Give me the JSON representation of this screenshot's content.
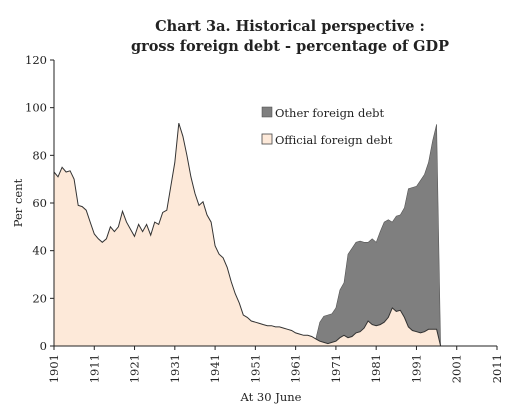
{
  "chart_data": {
    "type": "area",
    "title_line1": "Chart 3a. Historical perspective :",
    "title_line2": "gross foreign debt - percentage of GDP",
    "xlabel": "At 30 June",
    "ylabel": "Per cent",
    "xlim": [
      1901,
      2011
    ],
    "ylim": [
      0,
      120
    ],
    "x_ticks": [
      1901,
      1911,
      1921,
      1931,
      1941,
      1951,
      1961,
      1971,
      1981,
      1991,
      2001,
      2011
    ],
    "y_ticks": [
      0,
      20,
      40,
      60,
      80,
      100,
      120
    ],
    "grid": false,
    "stacked": true,
    "legend_position": "top-right",
    "series": [
      {
        "name": "Official foreign debt",
        "color": "#fde9d9",
        "points": [
          [
            1901,
            73
          ],
          [
            1902,
            71
          ],
          [
            1903,
            75
          ],
          [
            1904,
            73
          ],
          [
            1905,
            73.5
          ],
          [
            1906,
            70
          ],
          [
            1907,
            59
          ],
          [
            1908,
            58.5
          ],
          [
            1909,
            57
          ],
          [
            1910,
            52
          ],
          [
            1911,
            47
          ],
          [
            1912,
            45
          ],
          [
            1913,
            43.5
          ],
          [
            1914,
            45
          ],
          [
            1915,
            50
          ],
          [
            1916,
            48
          ],
          [
            1917,
            50
          ],
          [
            1918,
            56.5
          ],
          [
            1919,
            52
          ],
          [
            1920,
            49
          ],
          [
            1921,
            46
          ],
          [
            1922,
            51
          ],
          [
            1923,
            48
          ],
          [
            1924,
            51
          ],
          [
            1925,
            46.5
          ],
          [
            1926,
            52
          ],
          [
            1927,
            51
          ],
          [
            1928,
            56
          ],
          [
            1929,
            57
          ],
          [
            1930,
            67
          ],
          [
            1931,
            77
          ],
          [
            1932,
            93.5
          ],
          [
            1933,
            88
          ],
          [
            1934,
            80
          ],
          [
            1935,
            71
          ],
          [
            1936,
            64
          ],
          [
            1937,
            59
          ],
          [
            1938,
            60.5
          ],
          [
            1939,
            55
          ],
          [
            1940,
            52
          ],
          [
            1941,
            42
          ],
          [
            1942,
            38.5
          ],
          [
            1943,
            37
          ],
          [
            1944,
            33
          ],
          [
            1945,
            27
          ],
          [
            1946,
            22
          ],
          [
            1947,
            18
          ],
          [
            1948,
            13
          ],
          [
            1949,
            12
          ],
          [
            1950,
            10.5
          ],
          [
            1951,
            10
          ],
          [
            1952,
            9.5
          ],
          [
            1953,
            9
          ],
          [
            1954,
            8.5
          ],
          [
            1955,
            8.5
          ],
          [
            1956,
            8
          ],
          [
            1957,
            8
          ],
          [
            1958,
            7.5
          ],
          [
            1959,
            7
          ],
          [
            1960,
            6.5
          ],
          [
            1961,
            5.5
          ],
          [
            1962,
            5
          ],
          [
            1963,
            4.5
          ],
          [
            1964,
            4.5
          ],
          [
            1965,
            4
          ],
          [
            1966,
            3
          ],
          [
            1967,
            2
          ],
          [
            1968,
            1.5
          ],
          [
            1969,
            1
          ],
          [
            1970,
            1.5
          ],
          [
            1971,
            2
          ],
          [
            1972,
            3.5
          ],
          [
            1973,
            4.5
          ],
          [
            1974,
            3.5
          ],
          [
            1975,
            4
          ],
          [
            1976,
            5.5
          ],
          [
            1977,
            6
          ],
          [
            1978,
            7.5
          ],
          [
            1979,
            10.5
          ],
          [
            1980,
            9
          ],
          [
            1981,
            8.5
          ],
          [
            1982,
            9
          ],
          [
            1983,
            10
          ],
          [
            1984,
            12
          ],
          [
            1985,
            16
          ],
          [
            1986,
            14.5
          ],
          [
            1987,
            15
          ],
          [
            1988,
            12
          ],
          [
            1989,
            8
          ],
          [
            1990,
            6.5
          ],
          [
            1991,
            6
          ],
          [
            1992,
            5.5
          ],
          [
            1993,
            6
          ],
          [
            1994,
            7
          ],
          [
            1995,
            7
          ],
          [
            1996,
            7
          ],
          [
            1997,
            0
          ]
        ]
      },
      {
        "name": "Other foreign debt",
        "color": "#7f7f7f",
        "points": [
          [
            1966,
            0
          ],
          [
            1967,
            8
          ],
          [
            1968,
            11
          ],
          [
            1969,
            12
          ],
          [
            1970,
            12
          ],
          [
            1971,
            14
          ],
          [
            1972,
            20
          ],
          [
            1973,
            22
          ],
          [
            1974,
            35
          ],
          [
            1975,
            37
          ],
          [
            1976,
            38
          ],
          [
            1977,
            38
          ],
          [
            1978,
            36
          ],
          [
            1979,
            33
          ],
          [
            1980,
            36
          ],
          [
            1981,
            35
          ],
          [
            1982,
            39
          ],
          [
            1983,
            42
          ],
          [
            1984,
            41
          ],
          [
            1985,
            36
          ],
          [
            1986,
            40
          ],
          [
            1987,
            40
          ],
          [
            1988,
            46
          ],
          [
            1989,
            58
          ],
          [
            1990,
            60
          ],
          [
            1991,
            61
          ],
          [
            1992,
            64
          ],
          [
            1993,
            66
          ],
          [
            1994,
            70
          ],
          [
            1995,
            79
          ],
          [
            1996,
            86
          ],
          [
            1997,
            0
          ]
        ]
      }
    ],
    "legend": [
      "Other foreign debt",
      "Official foreign debt"
    ]
  }
}
